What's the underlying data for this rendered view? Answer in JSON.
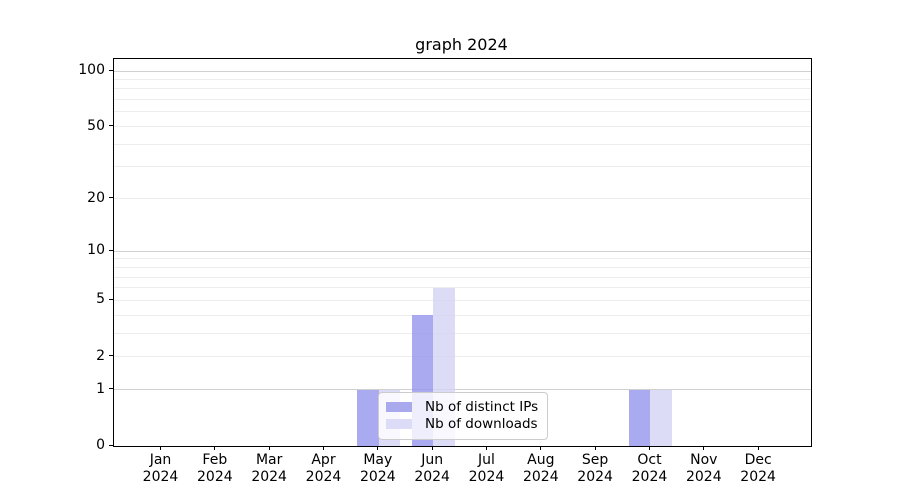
{
  "chart_data": {
    "type": "bar",
    "title": "graph 2024",
    "categories": [
      "Jan",
      "Feb",
      "Mar",
      "Apr",
      "May",
      "Jun",
      "Jul",
      "Aug",
      "Sep",
      "Oct",
      "Nov",
      "Dec"
    ],
    "year_label": "2024",
    "series": [
      {
        "name": "Nb of distinct IPs",
        "color": "#a9a9ee",
        "fill": "rgba(149,149,236,0.8)",
        "values": [
          0,
          0,
          0,
          0,
          1,
          4,
          0,
          0,
          0,
          1,
          0,
          0
        ]
      },
      {
        "name": "Nb of downloads",
        "color": "#dcdcf7",
        "fill": "rgba(211,211,245,0.8)",
        "values": [
          0,
          0,
          0,
          0,
          1,
          6,
          0,
          0,
          0,
          1,
          0,
          0
        ]
      }
    ],
    "y_axis": {
      "scale": "symlog-log1p",
      "tick_values": [
        0,
        1,
        2,
        5,
        10,
        20,
        50,
        100
      ],
      "major_gridlines": [
        1,
        10,
        100
      ],
      "minor_gridlines": [
        2,
        3,
        4,
        5,
        6,
        7,
        8,
        9,
        20,
        30,
        40,
        50,
        60,
        70,
        80,
        90
      ],
      "range": [
        0,
        116
      ]
    },
    "x_axis": {
      "tick_count": 12
    },
    "legend": {
      "position": "lower center"
    },
    "colors": {
      "background": "#ffffff",
      "grid_major": "#d0d0d0",
      "grid_minor": "#ededed",
      "axis": "#000000"
    }
  }
}
